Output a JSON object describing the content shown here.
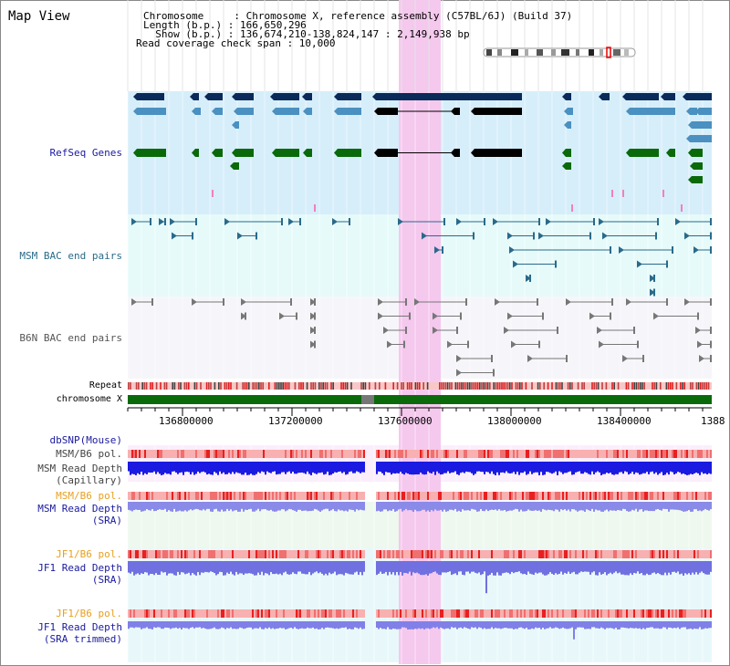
{
  "app": {
    "title": "Map View"
  },
  "header": {
    "line1": "Chromosome     : Chromosome X, reference assembly (C57BL/6J) (Build 37)",
    "line2": "Length (b.p.) : 166,650,296",
    "line3": "  Show (b.p.) : 136,674,210-138,824,147 : 2,149,938 bp",
    "line4": "Read coverage check span : 10,000"
  },
  "tracks": {
    "refseq": "RefSeq Genes",
    "msm_bac": "MSM BAC end pairs",
    "b6n_bac": "B6N BAC end pairs",
    "repeat": "Repeat",
    "chromosome": "chromosome X",
    "dbsnp": "dbSNP(Mouse)",
    "msm_pol1": "MSM/B6 pol.",
    "msm_depth_cap_1": "MSM Read Depth",
    "msm_depth_cap_2": "(Capillary)",
    "msm_pol2": "MSM/B6 pol.",
    "msm_depth_sra_1": "MSM Read Depth",
    "msm_depth_sra_2": "(SRA)",
    "jf1_pol1": "JF1/B6 pol.",
    "jf1_depth_sra_1": "JF1 Read Depth",
    "jf1_depth_sra_2": "(SRA)",
    "jf1_pol2": "JF1/B6 pol.",
    "jf1_depth_trim_1": "JF1 Read Depth",
    "jf1_depth_trim_2": "(SRA trimmed)"
  },
  "axis": {
    "ticks": [
      "136800000",
      "137200000",
      "137600000",
      "138000000",
      "138400000",
      "1388"
    ]
  },
  "colors": {
    "refseq_label": "#1a1aa0",
    "msm_label": "#2a6a8a",
    "orange_label": "#e8a020",
    "blue_label": "#1a1aa0",
    "highlight": "#f5c8ee",
    "chromosome": "#0a6a0a"
  }
}
